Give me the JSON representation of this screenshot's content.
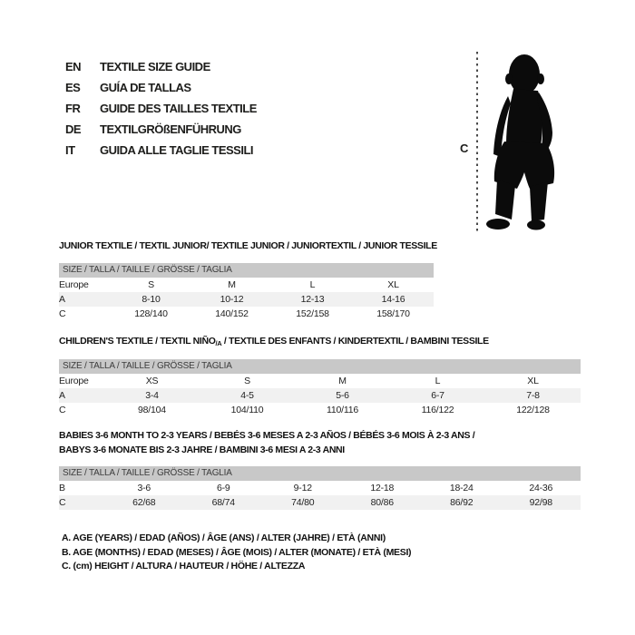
{
  "colors": {
    "header_bar": "#c8c8c8",
    "stripe": "#f1f1f1",
    "ink": "#1d1d1b",
    "silhouette": "#0b0b0b"
  },
  "languages": [
    {
      "code": "EN",
      "label": "TEXTILE SIZE GUIDE"
    },
    {
      "code": "ES",
      "label": "GUÍA DE TALLAS"
    },
    {
      "code": "FR",
      "label": "GUIDE DES TAILLES TEXTILE"
    },
    {
      "code": "DE",
      "label": "TEXTILGRÖßENFÜHRUNG"
    },
    {
      "code": "IT",
      "label": "GUIDA ALLE TAGLIE TESSILI"
    }
  ],
  "figure": {
    "icon": "toddler-silhouette-icon",
    "measure_label": "C"
  },
  "tables": [
    {
      "title": {
        "text": "JUNIOR TEXTILE / TEXTIL JUNIOR/ TEXTILE JUNIOR / JUNIORTEXTIL / JUNIOR TESSILE"
      },
      "size_header": "SIZE / TALLA / TAILLE / GRÖSSE / TAGLIA",
      "rows": [
        {
          "label": "Europe",
          "cells": [
            "S",
            "M",
            "L",
            "XL"
          ],
          "shade": false
        },
        {
          "label": "A",
          "cells": [
            "8-10",
            "10-12",
            "12-13",
            "14-16"
          ],
          "shade": true
        },
        {
          "label": "C",
          "cells": [
            "128/140",
            "140/152",
            "152/158",
            "158/170"
          ],
          "shade": false
        }
      ]
    },
    {
      "title": {
        "pre": "CHILDREN'S TEXTILE / TEXTIL NIÑO",
        "sub": "/A",
        "post": " / TEXTILE DES ENFANTS / KINDERTEXTIL / BAMBINI TESSILE"
      },
      "size_header": "SIZE / TALLA / TAILLE / GRÖSSE / TAGLIA",
      "rows": [
        {
          "label": "Europe",
          "cells": [
            "XS",
            "S",
            "M",
            "L",
            "XL"
          ],
          "shade": false
        },
        {
          "label": "A",
          "cells": [
            "3-4",
            "4-5",
            "5-6",
            "6-7",
            "7-8"
          ],
          "shade": true
        },
        {
          "label": "C",
          "cells": [
            "98/104",
            "104/110",
            "110/116",
            "116/122",
            "122/128"
          ],
          "shade": false
        }
      ]
    },
    {
      "title": {
        "line1": "BABIES 3-6 MONTH TO 2-3 YEARS / BEBÉS 3-6 MESES A 2-3 AÑOS / BÉBÉS 3-6 MOIS À 2-3 ANS /",
        "line2": "BABYS 3-6 MONATE BIS 2-3 JAHRE / BAMBINI 3-6 MESI A 2-3 ANNI"
      },
      "size_header": "SIZE / TALLA / TAILLE / GRÖSSE / TAGLIA",
      "rows": [
        {
          "label": "B",
          "cells": [
            "3-6",
            "6-9",
            "9-12",
            "12-18",
            "18-24",
            "24-36"
          ],
          "shade": false
        },
        {
          "label": "C",
          "cells": [
            "62/68",
            "68/74",
            "74/80",
            "80/86",
            "86/92",
            "92/98"
          ],
          "shade": true
        }
      ]
    }
  ],
  "footnotes": [
    "A. AGE (YEARS) / EDAD (AÑOS) / ÂGE (ANS) / ALTER (JAHRE) / ETÀ (ANNI)",
    "B. AGE (MONTHS) / EDAD (MESES) / ÂGE (MOIS) / ALTER (MONATE) / ETÀ (MESI)",
    "C. (cm) HEIGHT / ALTURA / HAUTEUR / HÖHE / ALTEZZA"
  ]
}
